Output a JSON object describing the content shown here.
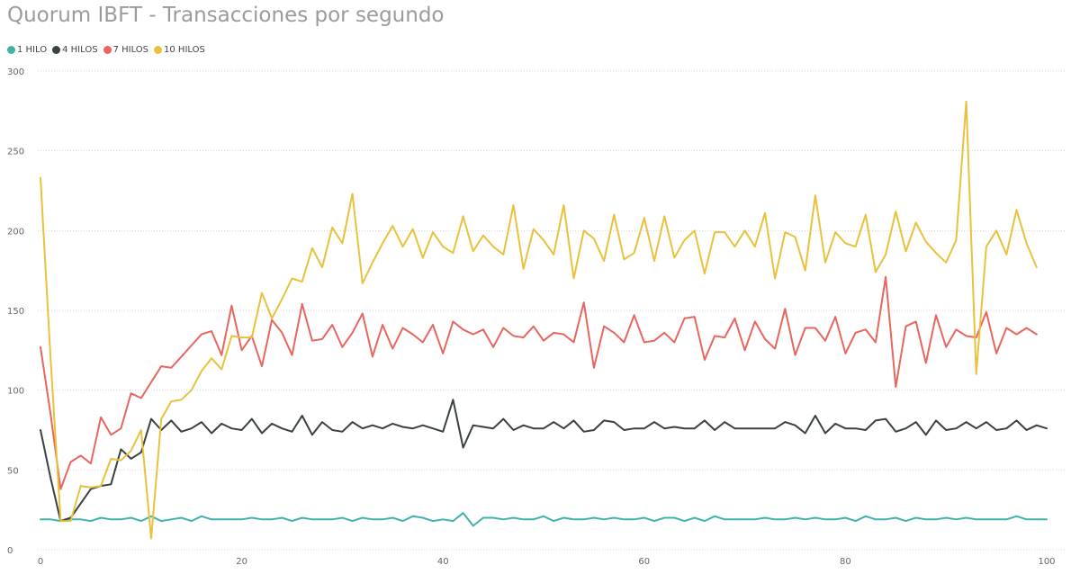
{
  "chart_data": {
    "type": "line",
    "title": "Quorum IBFT - Transacciones por segundo",
    "xlabel": "",
    "ylabel": "",
    "xlim": [
      0,
      100
    ],
    "ylim": [
      0,
      300
    ],
    "xticks": [
      0,
      20,
      40,
      60,
      80,
      100
    ],
    "yticks": [
      0,
      50,
      100,
      150,
      200,
      250,
      300
    ],
    "grid": "horizontal dashed",
    "legend_position": "top-left",
    "series": [
      {
        "name": "1 HILO",
        "color": "#3fb3aa",
        "values": [
          19,
          19,
          18,
          19,
          19,
          18,
          20,
          19,
          19,
          20,
          18,
          21,
          18,
          19,
          20,
          18,
          21,
          19,
          19,
          19,
          19,
          20,
          19,
          19,
          20,
          18,
          20,
          19,
          19,
          19,
          20,
          18,
          20,
          19,
          19,
          20,
          18,
          21,
          20,
          18,
          19,
          18,
          23,
          15,
          20,
          20,
          19,
          20,
          19,
          19,
          21,
          18,
          20,
          19,
          19,
          20,
          19,
          20,
          19,
          19,
          20,
          18,
          20,
          20,
          18,
          20,
          18,
          21,
          19,
          19,
          19,
          19,
          20,
          19,
          19,
          20,
          19,
          20,
          19,
          19,
          20,
          18,
          21,
          19,
          19,
          20,
          18,
          20,
          19,
          19,
          20,
          19,
          20,
          19,
          19,
          19,
          19,
          21,
          19,
          19,
          19
        ]
      },
      {
        "name": "4 HILOS",
        "color": "#3a4143",
        "values": [
          75,
          45,
          18,
          20,
          29,
          38,
          40,
          41,
          63,
          57,
          61,
          82,
          75,
          81,
          74,
          76,
          80,
          73,
          79,
          76,
          75,
          82,
          73,
          79,
          76,
          74,
          84,
          72,
          80,
          75,
          74,
          80,
          76,
          78,
          76,
          79,
          77,
          76,
          78,
          76,
          74,
          94,
          64,
          78,
          77,
          76,
          82,
          75,
          78,
          76,
          76,
          80,
          76,
          81,
          74,
          75,
          81,
          80,
          75,
          76,
          76,
          80,
          76,
          77,
          76,
          76,
          81,
          75,
          80,
          76,
          76,
          76,
          76,
          76,
          80,
          78,
          73,
          84,
          73,
          79,
          76,
          76,
          75,
          81,
          82,
          74,
          76,
          80,
          72,
          81,
          75,
          76,
          80,
          76,
          80,
          75,
          76,
          81,
          75,
          78,
          76
        ]
      },
      {
        "name": "7 HILOS",
        "color": "#e8665f",
        "values": [
          127,
          85,
          38,
          55,
          59,
          54,
          83,
          72,
          76,
          98,
          95,
          105,
          115,
          114,
          121,
          128,
          135,
          137,
          122,
          153,
          125,
          134,
          115,
          144,
          136,
          122,
          154,
          131,
          132,
          141,
          127,
          136,
          148,
          121,
          141,
          126,
          139,
          135,
          130,
          141,
          123,
          143,
          138,
          135,
          138,
          127,
          139,
          134,
          133,
          140,
          131,
          136,
          135,
          130,
          155,
          114,
          140,
          136,
          130,
          147,
          130,
          131,
          136,
          130,
          145,
          146,
          119,
          134,
          133,
          145,
          125,
          143,
          132,
          126,
          151,
          122,
          139,
          139,
          131,
          146,
          123,
          136,
          138,
          130,
          171,
          102,
          140,
          143,
          117,
          147,
          127,
          138,
          134,
          133,
          149,
          123,
          139,
          135,
          139,
          135
        ]
      },
      {
        "name": "10 HILOS",
        "color": "#e8c13d",
        "values": [
          233,
          120,
          18,
          18,
          40,
          39,
          40,
          57,
          56,
          62,
          75,
          7,
          82,
          93,
          94,
          100,
          112,
          120,
          113,
          134,
          133,
          133,
          161,
          145,
          157,
          170,
          168,
          189,
          177,
          202,
          192,
          223,
          167,
          180,
          192,
          203,
          190,
          201,
          183,
          199,
          190,
          186,
          209,
          187,
          197,
          190,
          185,
          216,
          176,
          201,
          194,
          185,
          216,
          170,
          200,
          195,
          181,
          210,
          182,
          186,
          208,
          181,
          209,
          183,
          194,
          200,
          173,
          199,
          199,
          190,
          200,
          190,
          211,
          170,
          199,
          196,
          175,
          222,
          180,
          199,
          192,
          190,
          210,
          174,
          185,
          212,
          187,
          205,
          193,
          186,
          180,
          194,
          281,
          110,
          190,
          200,
          185,
          213,
          192,
          177
        ]
      }
    ]
  }
}
